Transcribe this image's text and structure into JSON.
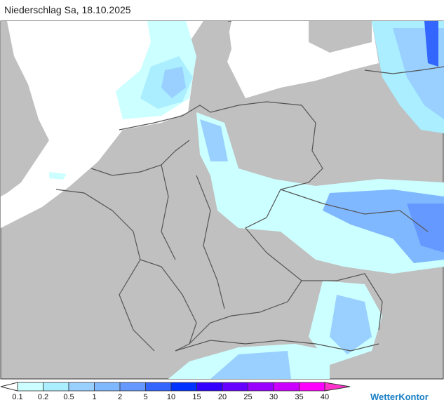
{
  "header": {
    "title": "Niederschlag Sa, 18.10.2025"
  },
  "legend": {
    "labels": [
      "0.1",
      "0.2",
      "0.5",
      "1",
      "2",
      "5",
      "10",
      "15",
      "20",
      "25",
      "30",
      "35",
      "40"
    ],
    "colors": [
      "#ccffff",
      "#aaeeff",
      "#99d0ff",
      "#80b8ff",
      "#6699ff",
      "#3366ff",
      "#0033ff",
      "#3300ff",
      "#6600ff",
      "#9900ff",
      "#cc00ff",
      "#ff00ff"
    ],
    "below_color": "#ffffff",
    "above_color": "#ff33cc"
  },
  "brand": {
    "name": "WetterKontor"
  }
}
